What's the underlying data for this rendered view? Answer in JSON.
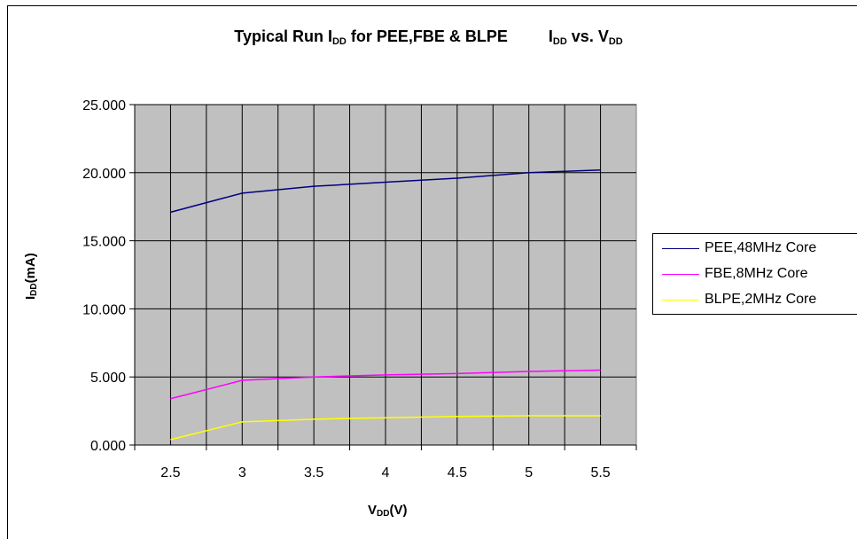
{
  "chart_data": {
    "type": "line",
    "title": {
      "part1_main": "Typical Run I",
      "part1_sub": "DD",
      "part1_rest": " for PEE,FBE & BLPE",
      "part2_main": "I",
      "part2_sub": "DD",
      "part2_mid": " vs. V",
      "part2_sub2": "DD"
    },
    "xlabel": {
      "main": "V",
      "sub": "DD",
      "rest": "(V)"
    },
    "ylabel": {
      "main": "I",
      "sub": "DD",
      "rest": "(mA)"
    },
    "categories": [
      "2.5",
      "3",
      "3.5",
      "4",
      "4.5",
      "5",
      "5.5"
    ],
    "x": [
      2.5,
      3,
      3.5,
      4,
      4.5,
      5,
      5.5
    ],
    "ylim": [
      0,
      25
    ],
    "yticks": [
      "0.000",
      "5.000",
      "10.000",
      "15.000",
      "20.000",
      "25.000"
    ],
    "grid": true,
    "legend_position": "right",
    "plot_background": "#c0c0c0",
    "series": [
      {
        "name": "PEE,48MHz Core",
        "color": "#000080",
        "values": [
          17.1,
          18.5,
          19.0,
          19.3,
          19.6,
          20.0,
          20.2
        ]
      },
      {
        "name": "FBE,8MHz Core",
        "color": "#ff00ff",
        "values": [
          3.4,
          4.75,
          5.0,
          5.15,
          5.25,
          5.4,
          5.5
        ]
      },
      {
        "name": "BLPE,2MHz Core",
        "color": "#ffff00",
        "values": [
          0.4,
          1.7,
          1.9,
          2.0,
          2.1,
          2.15,
          2.15
        ]
      }
    ]
  }
}
